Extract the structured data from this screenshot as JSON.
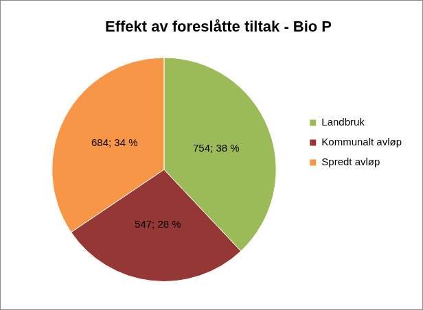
{
  "chart_data": {
    "type": "pie",
    "title": "Effekt av foreslåtte tiltak - Bio P",
    "categories": [
      "Landbruk",
      "Kommunalt avløp",
      "Spredt avløp"
    ],
    "values": [
      754,
      547,
      684
    ],
    "value_labels": [
      "754; 38 %",
      "547; 28 %",
      "684; 34 %"
    ],
    "colors": [
      "#9bbb59",
      "#953735",
      "#f79646"
    ],
    "legend": "right",
    "data_labels": true
  }
}
